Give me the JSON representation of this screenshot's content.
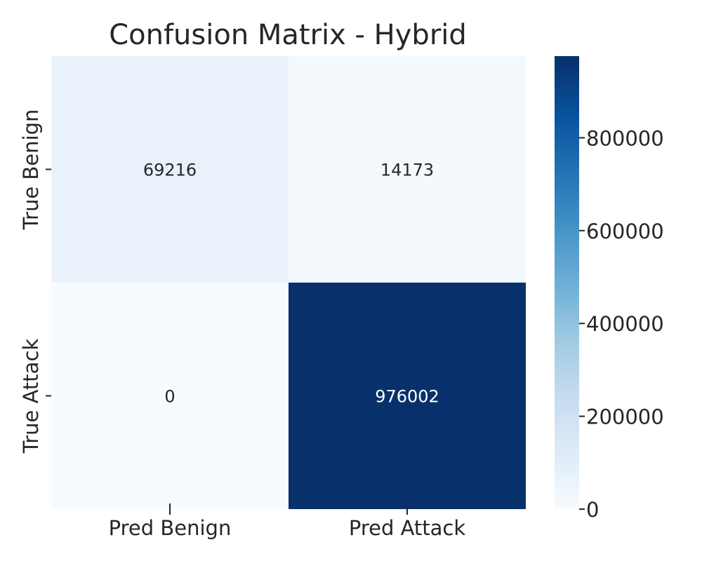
{
  "chart_data": {
    "type": "heatmap",
    "title": "Confusion Matrix - Hybrid",
    "x_categories": [
      "Pred Benign",
      "Pred Attack"
    ],
    "y_categories": [
      "True Benign",
      "True Attack"
    ],
    "values": [
      [
        69216,
        14173
      ],
      [
        0,
        976002
      ]
    ],
    "colormap": "Blues",
    "colorbar": {
      "range": [
        0,
        976002
      ],
      "ticks": [
        0,
        200000,
        400000,
        600000,
        800000
      ],
      "tick_labels": [
        "0",
        "200000",
        "400000",
        "600000",
        "800000"
      ]
    },
    "colors": {
      "text_light": "#ffffff",
      "text_dark": "#262626",
      "tick": "#262626"
    }
  }
}
